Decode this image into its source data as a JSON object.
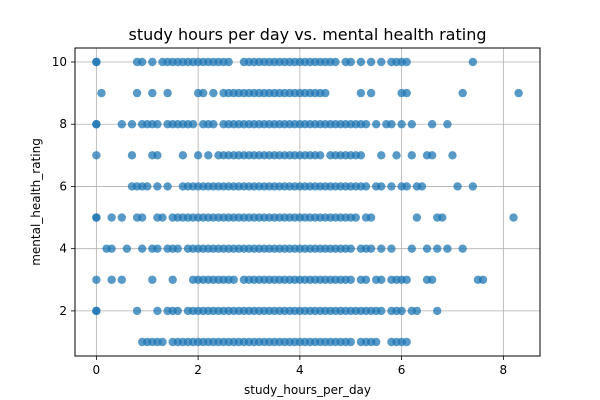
{
  "chart_data": {
    "type": "scatter",
    "title": "study hours per day vs. mental health rating",
    "xlabel": "study_hours_per_day",
    "ylabel": "mental_health_rating",
    "xlim": [
      -0.42,
      8.72
    ],
    "ylim": [
      0.55,
      10.45
    ],
    "xticks": [
      0,
      2,
      4,
      6,
      8
    ],
    "yticks": [
      2,
      4,
      6,
      8,
      10
    ],
    "grid": true,
    "marker_color": "#1f77b4",
    "marker_alpha": 0.75,
    "points_by_rating": [
      {
        "y": 10,
        "x": [
          0.0,
          0.0,
          0.8,
          0.9,
          1.1,
          1.3,
          1.4,
          1.5,
          1.6,
          1.7,
          1.8,
          1.9,
          2.0,
          2.1,
          2.2,
          2.3,
          2.4,
          2.5,
          2.6,
          2.9,
          3.0,
          3.1,
          3.2,
          3.3,
          3.4,
          3.5,
          3.6,
          3.7,
          3.8,
          3.9,
          4.0,
          4.1,
          4.2,
          4.3,
          4.4,
          4.5,
          4.6,
          4.7,
          4.9,
          5.0,
          5.2,
          5.4,
          5.6,
          5.8,
          5.9,
          6.0,
          6.1,
          7.4
        ]
      },
      {
        "y": 9,
        "x": [
          0.1,
          0.8,
          1.1,
          1.4,
          2.0,
          2.1,
          2.3,
          2.5,
          2.6,
          2.7,
          2.8,
          2.9,
          3.0,
          3.1,
          3.2,
          3.3,
          3.4,
          3.5,
          3.6,
          3.7,
          3.8,
          3.9,
          4.0,
          4.1,
          4.2,
          4.3,
          4.4,
          4.5,
          5.2,
          5.4,
          6.0,
          6.1,
          7.2,
          8.3
        ]
      },
      {
        "y": 8,
        "x": [
          0.0,
          0.0,
          0.5,
          0.7,
          0.9,
          1.0,
          1.1,
          1.2,
          1.4,
          1.5,
          1.6,
          1.7,
          1.8,
          1.9,
          2.1,
          2.2,
          2.3,
          2.5,
          2.6,
          2.7,
          2.8,
          2.9,
          3.0,
          3.1,
          3.2,
          3.3,
          3.4,
          3.5,
          3.6,
          3.7,
          3.8,
          3.9,
          4.0,
          4.1,
          4.2,
          4.3,
          4.4,
          4.5,
          4.6,
          4.7,
          4.8,
          4.9,
          5.0,
          5.1,
          5.2,
          5.3,
          5.5,
          5.7,
          5.8,
          6.0,
          6.2,
          6.6,
          6.9
        ]
      },
      {
        "y": 7,
        "x": [
          0.0,
          0.7,
          1.1,
          1.2,
          1.7,
          2.0,
          2.2,
          2.4,
          2.5,
          2.6,
          2.7,
          2.8,
          2.9,
          3.0,
          3.1,
          3.2,
          3.3,
          3.4,
          3.5,
          3.6,
          3.7,
          3.8,
          3.9,
          4.0,
          4.1,
          4.2,
          4.3,
          4.4,
          4.6,
          4.7,
          4.8,
          4.9,
          5.0,
          5.1,
          5.2,
          5.6,
          5.9,
          6.2,
          6.5,
          6.6,
          7.0
        ]
      },
      {
        "y": 6,
        "x": [
          0.7,
          0.8,
          0.9,
          1.0,
          1.2,
          1.4,
          1.7,
          1.8,
          1.9,
          2.0,
          2.1,
          2.2,
          2.3,
          2.4,
          2.5,
          2.6,
          2.7,
          2.8,
          2.9,
          3.0,
          3.1,
          3.2,
          3.3,
          3.4,
          3.5,
          3.6,
          3.7,
          3.8,
          3.9,
          4.0,
          4.1,
          4.2,
          4.3,
          4.4,
          4.5,
          4.6,
          4.7,
          4.8,
          4.9,
          5.0,
          5.1,
          5.2,
          5.3,
          5.5,
          5.6,
          5.8,
          6.0,
          6.1,
          6.3,
          6.4,
          7.1,
          7.4
        ]
      },
      {
        "y": 5,
        "x": [
          0.0,
          0.0,
          0.3,
          0.5,
          0.8,
          0.9,
          1.2,
          1.3,
          1.5,
          1.6,
          1.7,
          1.8,
          1.9,
          2.0,
          2.1,
          2.2,
          2.3,
          2.4,
          2.5,
          2.6,
          2.7,
          2.8,
          2.9,
          3.0,
          3.1,
          3.2,
          3.3,
          3.4,
          3.5,
          3.6,
          3.7,
          3.8,
          3.9,
          4.0,
          4.1,
          4.2,
          4.3,
          4.4,
          4.5,
          4.6,
          4.7,
          4.8,
          4.9,
          5.0,
          5.1,
          5.3,
          5.4,
          6.3,
          6.7,
          6.8,
          8.2
        ]
      },
      {
        "y": 4,
        "x": [
          0.2,
          0.3,
          0.6,
          0.9,
          1.1,
          1.2,
          1.4,
          1.5,
          1.6,
          1.8,
          1.9,
          2.0,
          2.1,
          2.2,
          2.3,
          2.4,
          2.5,
          2.6,
          2.7,
          2.8,
          2.9,
          3.0,
          3.1,
          3.2,
          3.3,
          3.4,
          3.5,
          3.6,
          3.7,
          3.8,
          3.9,
          4.0,
          4.1,
          4.2,
          4.3,
          4.4,
          4.5,
          4.6,
          4.7,
          4.8,
          4.9,
          5.0,
          5.2,
          5.3,
          5.4,
          5.6,
          5.8,
          6.2,
          6.5,
          6.7,
          6.9,
          7.2
        ]
      },
      {
        "y": 3,
        "x": [
          0.0,
          0.3,
          0.5,
          1.1,
          1.5,
          1.9,
          2.0,
          2.1,
          2.2,
          2.3,
          2.4,
          2.5,
          2.6,
          2.7,
          2.9,
          3.0,
          3.1,
          3.2,
          3.3,
          3.4,
          3.5,
          3.6,
          3.7,
          3.8,
          3.9,
          4.0,
          4.1,
          4.2,
          4.3,
          4.4,
          4.5,
          4.6,
          4.7,
          4.8,
          4.9,
          5.0,
          5.2,
          5.3,
          5.5,
          5.6,
          5.8,
          5.9,
          6.0,
          6.1,
          6.5,
          6.6,
          7.5,
          7.6
        ]
      },
      {
        "y": 2,
        "x": [
          0.0,
          0.0,
          0.8,
          1.2,
          1.4,
          1.5,
          1.6,
          1.8,
          1.9,
          2.0,
          2.1,
          2.2,
          2.3,
          2.4,
          2.5,
          2.6,
          2.7,
          2.8,
          2.9,
          3.0,
          3.1,
          3.2,
          3.3,
          3.4,
          3.5,
          3.6,
          3.7,
          3.8,
          3.9,
          4.0,
          4.1,
          4.2,
          4.3,
          4.4,
          4.5,
          4.6,
          4.7,
          4.8,
          4.9,
          5.0,
          5.1,
          5.2,
          5.3,
          5.4,
          5.5,
          5.6,
          5.8,
          5.9,
          6.0,
          6.2,
          6.3,
          6.7
        ]
      },
      {
        "y": 1,
        "x": [
          0.9,
          1.0,
          1.1,
          1.2,
          1.3,
          1.5,
          1.6,
          1.7,
          1.8,
          1.9,
          2.0,
          2.1,
          2.2,
          2.3,
          2.4,
          2.5,
          2.6,
          2.7,
          2.8,
          2.9,
          3.0,
          3.1,
          3.2,
          3.3,
          3.4,
          3.5,
          3.6,
          3.7,
          3.8,
          3.9,
          4.0,
          4.1,
          4.2,
          4.3,
          4.4,
          4.5,
          4.6,
          4.7,
          4.8,
          4.9,
          5.0,
          5.2,
          5.3,
          5.4,
          5.5,
          5.8,
          5.9,
          6.0,
          6.1
        ]
      }
    ]
  }
}
